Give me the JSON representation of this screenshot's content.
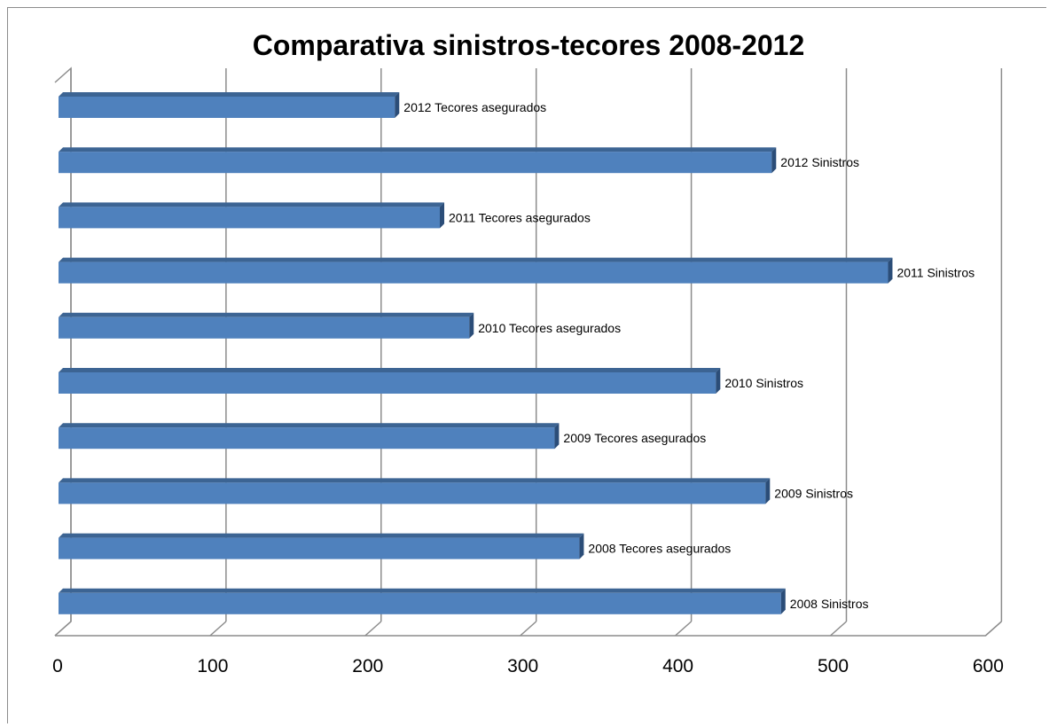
{
  "chart_data": {
    "type": "bar",
    "orientation": "horizontal",
    "title": "Comparativa sinistros-tecores 2008-2012",
    "xlabel": "",
    "ylabel": "",
    "xlim": [
      0,
      600
    ],
    "x_ticks": [
      "0",
      "100",
      "200",
      "300",
      "400",
      "500",
      "600"
    ],
    "grid": true,
    "legend": "none",
    "categories": [
      "2012 Tecores asegurados",
      "2012 Sinistros",
      "2011 Tecores asegurados",
      "2011 Sinistros",
      "2010 Tecores asegurados",
      "2010 Sinistros",
      "2009 Tecores asegurados",
      "2009 Sinistros",
      "2008 Tecores asegurados",
      "2008 Sinistros"
    ],
    "values": [
      218,
      461,
      247,
      536,
      266,
      425,
      321,
      457,
      337,
      467
    ],
    "colors": {
      "bar_front": "#4f81bd",
      "bar_top": "#3c6493",
      "bar_side": "#2b4d78",
      "grid": "#8c8c8c"
    }
  }
}
